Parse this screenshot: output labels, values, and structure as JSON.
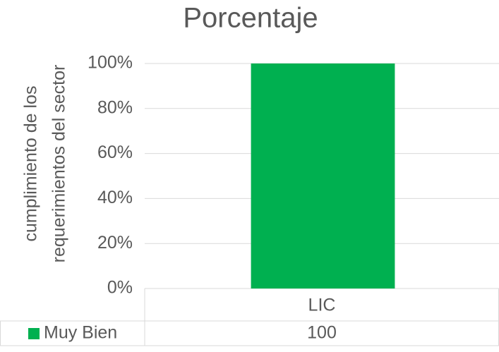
{
  "chart_data": {
    "type": "bar",
    "title": "Porcentaje",
    "ylabel": [
      "cumplimiento de los",
      "requerimientos  del sector"
    ],
    "categories": [
      "LIC"
    ],
    "series": [
      {
        "name": "Muy Bien",
        "color": "#00b050",
        "values": [
          100
        ]
      }
    ],
    "ylim": [
      0,
      100
    ],
    "yticks": [
      {
        "value": 0,
        "label": "0%"
      },
      {
        "value": 20,
        "label": "20%"
      },
      {
        "value": 40,
        "label": "40%"
      },
      {
        "value": 60,
        "label": "60%"
      },
      {
        "value": 80,
        "label": "80%"
      },
      {
        "value": 100,
        "label": "100%"
      }
    ],
    "grid": true,
    "data_table": true
  }
}
